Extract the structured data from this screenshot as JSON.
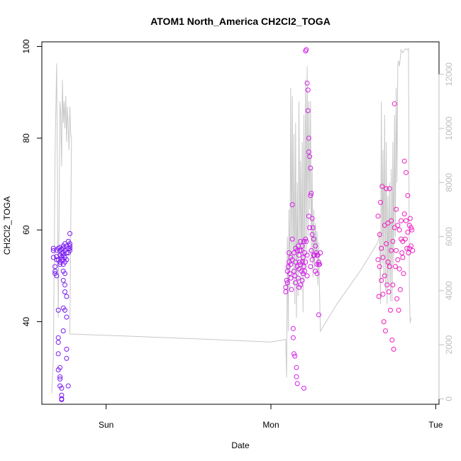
{
  "chart_data": {
    "type": "scatter",
    "title": "ATOM1 North_America CH2Cl2_TOGA",
    "xlabel": "Date",
    "ylabel": "CH2Cl2_TOGA",
    "xlim": [
      -0.39,
      2.02
    ],
    "ylim": [
      22,
      101
    ],
    "y2lim": [
      -200,
      13200
    ],
    "x_ticks": [
      {
        "value": 0,
        "label": "Sun"
      },
      {
        "value": 1,
        "label": "Mon"
      },
      {
        "value": 2,
        "label": "Tue"
      }
    ],
    "y_ticks": [
      40,
      60,
      80,
      100
    ],
    "y2_ticks": [
      0,
      2000,
      4000,
      6000,
      8000,
      10000,
      12000
    ],
    "grid": false,
    "secondary_series": {
      "axis": "right",
      "color": "#c8c8c8",
      "x": [
        -0.33,
        -0.32,
        -0.31,
        -0.3,
        -0.29,
        -0.285,
        -0.28,
        -0.275,
        -0.27,
        -0.265,
        -0.26,
        -0.255,
        -0.25,
        -0.245,
        -0.24,
        -0.235,
        -0.23,
        -0.225,
        -0.22,
        -0.215,
        -0.21,
        -0.22,
        0.0,
        0.5,
        1.0,
        1.09,
        1.095,
        1.1,
        1.105,
        1.11,
        1.115,
        1.12,
        1.125,
        1.13,
        1.135,
        1.14,
        1.145,
        1.15,
        1.155,
        1.16,
        1.165,
        1.17,
        1.175,
        1.18,
        1.185,
        1.19,
        1.195,
        1.2,
        1.205,
        1.21,
        1.215,
        1.22,
        1.225,
        1.23,
        1.235,
        1.24,
        1.245,
        1.25,
        1.255,
        1.26,
        1.265,
        1.27,
        1.275,
        1.28,
        1.285,
        1.29,
        1.295,
        1.3,
        1.4,
        1.55,
        1.65,
        1.66,
        1.665,
        1.67,
        1.675,
        1.68,
        1.685,
        1.69,
        1.695,
        1.7,
        1.705,
        1.71,
        1.715,
        1.72,
        1.725,
        1.73,
        1.735,
        1.74,
        1.745,
        1.75,
        1.755,
        1.76,
        1.765,
        1.77,
        1.775,
        1.78,
        1.79,
        1.8,
        1.81,
        1.82,
        1.83,
        1.835,
        1.84,
        1.845,
        1.85
      ],
      "y": [
        200,
        1500,
        9000,
        12400,
        3000,
        7000,
        11000,
        10500,
        8600,
        11800,
        10200,
        11000,
        10000,
        11200,
        9500,
        10800,
        10000,
        9200,
        10800,
        9800,
        9600,
        2400,
        2350,
        2230,
        2100,
        2200,
        800,
        6000,
        2500,
        7000,
        4000,
        11500,
        5000,
        11200,
        4200,
        9800,
        3500,
        10200,
        3000,
        8000,
        3800,
        11000,
        5500,
        8800,
        4000,
        9500,
        3200,
        10500,
        4500,
        11800,
        5500,
        12300,
        6000,
        11000,
        7000,
        11000,
        5200,
        8500,
        4500,
        7000,
        4800,
        6500,
        5200,
        6200,
        4200,
        5800,
        4000,
        2500,
        3500,
        4800,
        5800,
        6200,
        3500,
        11000,
        5000,
        9200,
        4500,
        10500,
        4000,
        9500,
        3500,
        7500,
        4200,
        8000,
        3600,
        8500,
        3600,
        9500,
        5000,
        10500,
        6000,
        11500,
        8000,
        12400,
        12500,
        12300,
        12900,
        12800,
        12900,
        12950,
        12900,
        12950,
        4000,
        2800,
        3000
      ]
    },
    "series": [
      {
        "color": "#7a1bf2",
        "x": [
          -0.32,
          -0.32,
          -0.32,
          -0.31,
          -0.31,
          -0.31,
          -0.3,
          -0.3,
          -0.3,
          -0.3,
          -0.29,
          -0.29,
          -0.29,
          -0.29,
          -0.29,
          -0.29,
          -0.29,
          -0.28,
          -0.28,
          -0.28,
          -0.28,
          -0.28,
          -0.28,
          -0.28,
          -0.28,
          -0.28,
          -0.27,
          -0.27,
          -0.27,
          -0.27,
          -0.27,
          -0.27,
          -0.27,
          -0.27,
          -0.26,
          -0.26,
          -0.26,
          -0.26,
          -0.26,
          -0.26,
          -0.26,
          -0.26,
          -0.26,
          -0.26,
          -0.25,
          -0.25,
          -0.25,
          -0.25,
          -0.25,
          -0.25,
          -0.25,
          -0.25,
          -0.24,
          -0.24,
          -0.24,
          -0.24,
          -0.24,
          -0.24,
          -0.24,
          -0.23,
          -0.23,
          -0.23,
          -0.23,
          -0.22,
          -0.22,
          -0.22,
          -0.22,
          -0.22
        ],
        "y": [
          56,
          55.5,
          54,
          52,
          51,
          50.5,
          55.6,
          54.2,
          53.5,
          50,
          56,
          53.5,
          42.5,
          36.5,
          35.5,
          33,
          29.5,
          56.2,
          55.5,
          54.5,
          53,
          52.5,
          30,
          28,
          27.5,
          26,
          55.8,
          55,
          54,
          53.5,
          25.5,
          24,
          23,
          23.2,
          56.5,
          56,
          55,
          54.5,
          53.5,
          52.5,
          51,
          49,
          43,
          38,
          57,
          55.5,
          54,
          53,
          50.5,
          48,
          46.5,
          42.5,
          56.5,
          55,
          53.5,
          45.5,
          41,
          34,
          32,
          57.5,
          56,
          55,
          26,
          59.2,
          57,
          56.5,
          55.5,
          56
        ]
      },
      {
        "color": "#d21ee8",
        "x": [
          1.09,
          1.09,
          1.095,
          1.1,
          1.1,
          1.105,
          1.11,
          1.11,
          1.115,
          1.12,
          1.12,
          1.12,
          1.125,
          1.13,
          1.13,
          1.13,
          1.135,
          1.135,
          1.14,
          1.14,
          1.14,
          1.145,
          1.145,
          1.15,
          1.15,
          1.15,
          1.155,
          1.155,
          1.16,
          1.16,
          1.16,
          1.165,
          1.165,
          1.17,
          1.17,
          1.17,
          1.175,
          1.175,
          1.18,
          1.18,
          1.18,
          1.185,
          1.185,
          1.19,
          1.19,
          1.19,
          1.195,
          1.195,
          1.2,
          1.2,
          1.2,
          1.205,
          1.205,
          1.21,
          1.21,
          1.21,
          1.215,
          1.215,
          1.22,
          1.22,
          1.22,
          1.225,
          1.225,
          1.23,
          1.23,
          1.23,
          1.235,
          1.235,
          1.24,
          1.24,
          1.24,
          1.245,
          1.245,
          1.25,
          1.25,
          1.25,
          1.255,
          1.26,
          1.26,
          1.265,
          1.27,
          1.27,
          1.275,
          1.28,
          1.28,
          1.28,
          1.285,
          1.29,
          1.29,
          1.29,
          1.295,
          1.3
        ],
        "y": [
          47.5,
          46.5,
          49,
          51,
          48.5,
          52,
          55,
          53,
          50.5,
          54,
          52.5,
          49.5,
          47,
          65.5,
          58,
          53.5,
          38.5,
          36.5,
          55,
          51,
          33,
          50,
          32.5,
          56,
          53,
          48.5,
          30,
          28,
          55.5,
          52,
          26.5,
          56.5,
          49.5,
          54.5,
          51.5,
          47.5,
          55.5,
          53,
          57.5,
          52.5,
          48,
          55.5,
          51,
          56.5,
          53,
          49,
          54,
          50.5,
          57.5,
          52,
          25.5,
          55,
          51,
          99,
          58,
          53,
          99.3,
          57.5,
          92,
          54.5,
          50,
          90.5,
          86,
          80,
          77,
          63,
          76,
          60.5,
          73.5,
          67.5,
          52,
          68,
          55.5,
          62.5,
          59,
          53.5,
          60.5,
          58,
          54.5,
          54.5,
          51,
          56.5,
          55,
          54.5,
          52.5,
          50.5,
          54.5,
          52.5,
          41.5,
          53,
          52.5,
          55
        ]
      },
      {
        "color": "#f01cc0",
        "x": [
          1.65,
          1.65,
          1.655,
          1.66,
          1.66,
          1.665,
          1.67,
          1.67,
          1.675,
          1.68,
          1.68,
          1.685,
          1.69,
          1.69,
          1.695,
          1.7,
          1.7,
          1.705,
          1.71,
          1.71,
          1.715,
          1.72,
          1.72,
          1.725,
          1.73,
          1.73,
          1.735,
          1.74,
          1.74,
          1.745,
          1.75,
          1.75,
          1.755,
          1.76,
          1.76,
          1.765,
          1.77,
          1.77,
          1.775,
          1.78,
          1.78,
          1.785,
          1.79,
          1.79,
          1.795,
          1.8,
          1.8,
          1.805,
          1.81,
          1.81,
          1.815,
          1.82,
          1.82,
          1.825,
          1.83,
          1.83,
          1.835,
          1.84,
          1.84,
          1.845,
          1.85,
          1.85,
          1.855,
          1.86
        ],
        "y": [
          63,
          53.5,
          45.5,
          59,
          52,
          66,
          56,
          49,
          69.5,
          54,
          46,
          40,
          61,
          50,
          38,
          69,
          57,
          48,
          61.5,
          53,
          46.5,
          69,
          52,
          42.5,
          62,
          55.5,
          36,
          57.5,
          48,
          34,
          87.5,
          60.5,
          52,
          64.5,
          55.5,
          45,
          61,
          53.5,
          42.5,
          60,
          51.5,
          47,
          62,
          58,
          55,
          57.5,
          54,
          50.5,
          75,
          63.5,
          58,
          72.5,
          62,
          56,
          67.5,
          59.5,
          55,
          61,
          56,
          62.5,
          60.5,
          56.5,
          60,
          55.5
        ]
      }
    ]
  }
}
